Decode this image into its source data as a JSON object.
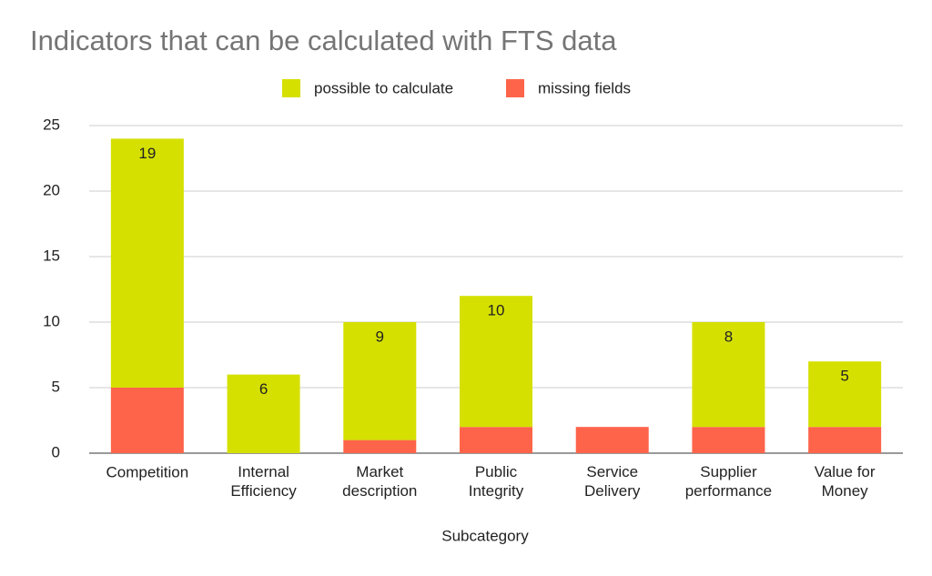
{
  "chart_data": {
    "type": "stacked_bar",
    "title": "Indicators that can be calculated with FTS data",
    "x_label": "Subcategory",
    "categories": [
      "Competition",
      "Internal Efficiency",
      "Market description",
      "Public Integrity",
      "Service Delivery",
      "Supplier performance",
      "Value for Money"
    ],
    "series": [
      {
        "name": "possible to calculate",
        "color": "#d5e000",
        "values": [
          19,
          6,
          9,
          10,
          0,
          8,
          5
        ]
      },
      {
        "name": "missing fields",
        "color": "#fe644a",
        "values": [
          5,
          0,
          1,
          2,
          2,
          2,
          2
        ]
      }
    ],
    "ylim": [
      0,
      25
    ],
    "yticks": [
      0,
      5,
      10,
      15,
      20,
      25
    ],
    "grid": true,
    "legend": "top"
  }
}
